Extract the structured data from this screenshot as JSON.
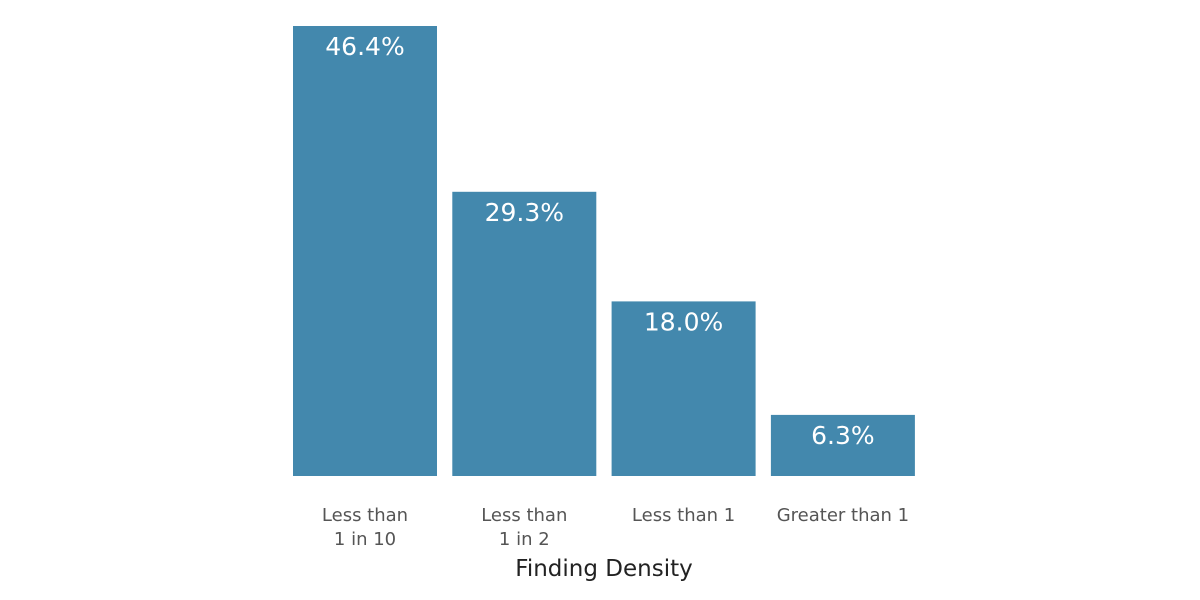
{
  "colors": {
    "bar": "#4388ad",
    "background": "#ffffff"
  },
  "chart_data": {
    "type": "bar",
    "categories": [
      [
        "Less than",
        "1 in 10"
      ],
      [
        "Less than",
        "1 in 2"
      ],
      [
        "Less than 1"
      ],
      [
        "Greater than 1"
      ]
    ],
    "values": [
      46.4,
      29.3,
      18.0,
      6.3
    ],
    "value_labels": [
      "46.4%",
      "29.3%",
      "18.0%",
      "6.3%"
    ],
    "title": "",
    "xlabel": "Finding Density",
    "ylabel": "",
    "ylim": [
      0,
      46.4
    ],
    "grid": false,
    "legend": "none"
  }
}
